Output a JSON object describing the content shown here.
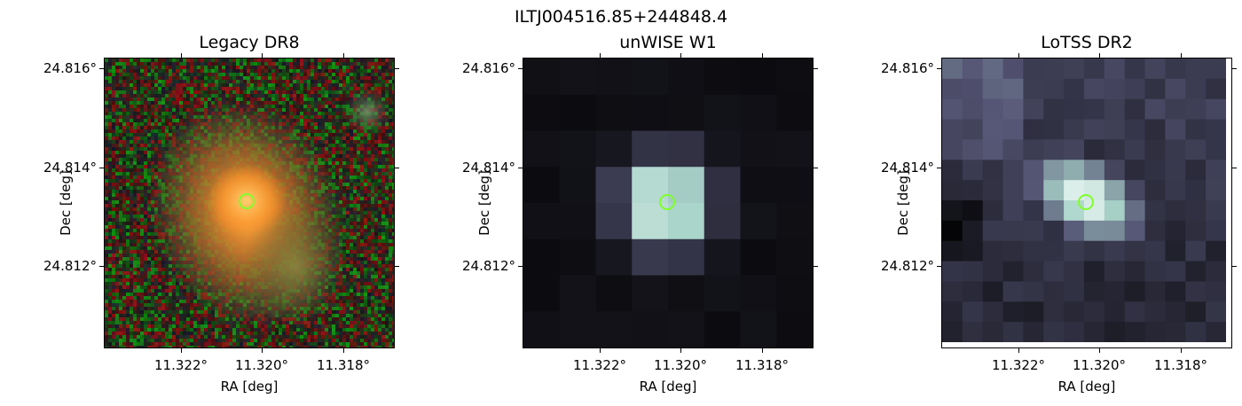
{
  "figure": {
    "suptitle": "ILTJ004516.85+244848.4",
    "colors": {
      "marker": "#7fff2a"
    }
  },
  "panels": [
    {
      "title": "Legacy DR8",
      "xlabel": "RA [deg]",
      "ylabel": "Dec [deg]",
      "xticks": [
        "11.322°",
        "11.320°",
        "11.318°"
      ],
      "yticks": [
        "24.816°",
        "24.814°",
        "24.812°"
      ],
      "image": "optical-rgb-galaxy"
    },
    {
      "title": "unWISE W1",
      "xlabel": "RA [deg]",
      "ylabel": "Dec [deg]",
      "xticks": [
        "11.322°",
        "11.320°",
        "11.318°"
      ],
      "yticks": [
        "24.816°",
        "24.814°",
        "24.812°"
      ],
      "image": "infrared-bone-pixels"
    },
    {
      "title": "LoTSS DR2",
      "xlabel": "RA [deg]",
      "ylabel": "Dec [deg]",
      "xticks": [
        "11.322°",
        "11.320°",
        "11.318°"
      ],
      "yticks": [
        "24.816°",
        "24.814°",
        "24.812°"
      ],
      "image": "radio-bone-pixels"
    }
  ]
}
